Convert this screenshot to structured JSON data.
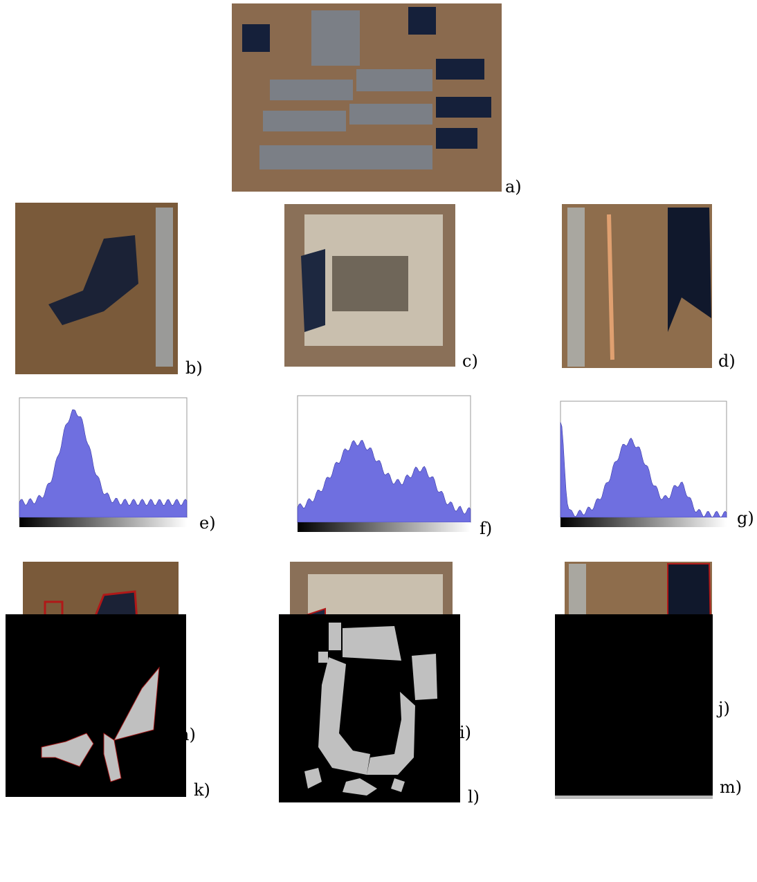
{
  "figure": {
    "panels": [
      {
        "label": "a)"
      },
      {
        "label": "b)"
      },
      {
        "label": "c)"
      },
      {
        "label": "d)"
      },
      {
        "label": "e)"
      },
      {
        "label": "f)"
      },
      {
        "label": "g)"
      },
      {
        "label": "h)"
      },
      {
        "label": "i)"
      },
      {
        "label": "j)"
      },
      {
        "label": "k)"
      },
      {
        "label": "l)"
      },
      {
        "label": "m)"
      }
    ]
  }
}
